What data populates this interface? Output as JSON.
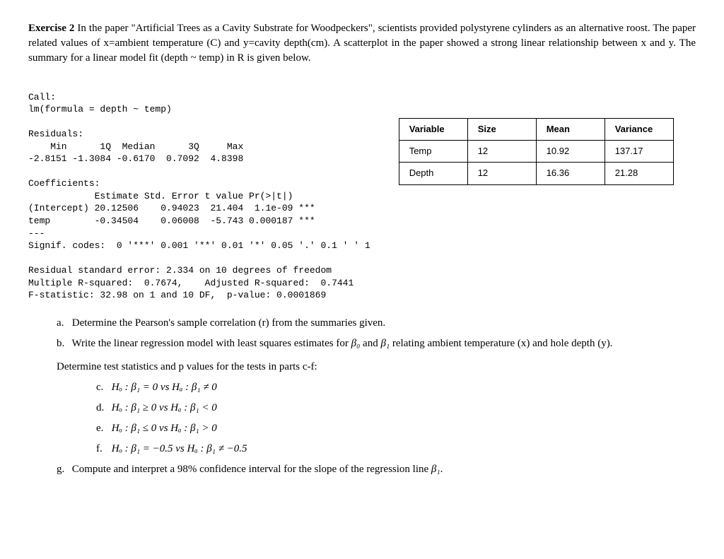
{
  "exercise": {
    "title_bold": "Exercise 2",
    "intro_text": " In the paper \"Artificial Trees as a Cavity Substrate for Woodpeckers\", scientists provided polystyrene cylinders as an alternative roost. The paper related values of x=ambient temperature (C) and y=cavity depth(cm). A scatterplot in the paper showed a strong linear relationship between x and y. The summary for a linear model fit (depth ~ temp) in R is given below."
  },
  "r_output": {
    "call_label": "Call:",
    "call_line": "lm(formula = depth ~ temp)",
    "residuals_label": "Residuals:",
    "residuals_header": "    Min      1Q  Median      3Q     Max",
    "residuals_values": "-2.8151 -1.3084 -0.6170  0.7092  4.8398",
    "coefficients_label": "Coefficients:",
    "coef_header": "            Estimate Std. Error t value Pr(>|t|)",
    "coef_intercept": "(Intercept) 20.12506    0.94023  21.404  1.1e-09 ***",
    "coef_temp": "temp        -0.34504    0.06008  -5.743 0.000187 ***",
    "dashes": "---",
    "signif_codes": "Signif. codes:  0 '***' 0.001 '**' 0.01 '*' 0.05 '.' 0.1 ' ' 1",
    "rse_line": "Residual standard error: 2.334 on 10 degrees of freedom",
    "r2_line": "Multiple R-squared:  0.7674,    Adjusted R-squared:  0.7441",
    "fstat_line": "F-statistic: 32.98 on 1 and 10 DF,  p-value: 0.0001869"
  },
  "stats_table": {
    "headers": {
      "c1": "Variable",
      "c2": "Size",
      "c3": "Mean",
      "c4": "Variance"
    },
    "row1": {
      "c1": "Temp",
      "c2": "12",
      "c3": "10.92",
      "c4": "137.17"
    },
    "row2": {
      "c1": "Depth",
      "c2": "12",
      "c3": "16.36",
      "c4": "21.28"
    }
  },
  "questions": {
    "a": "Determine the Pearson's sample correlation (r) from the summaries given.",
    "b_pre": "Write the linear regression model with least squares estimates for ",
    "b_beta0": "β₀",
    "b_and": " and ",
    "b_beta1": "β₁",
    "b_post": " relating ambient temperature (x) and hole depth (y).",
    "sub_intro": "Determine test statistics and p values for the tests in parts c-f:",
    "c": "Hₒ : β₁ = 0 vs Hₐ : β₁ ≠ 0",
    "d": "Hₒ : β₁ ≥ 0 vs Hₐ : β₁ < 0",
    "e": "Hₒ : β₁ ≤ 0 vs Hₐ : β₁ > 0",
    "f": "Hₒ : β₁ = −0.5 vs Hₐ : β₁ ≠ −0.5",
    "g_pre": "Compute and interpret a 98% confidence interval for the slope of the regression line ",
    "g_beta1": "β₁",
    "g_post": "."
  },
  "labels": {
    "a": "a.",
    "b": "b.",
    "c": "c.",
    "d": "d.",
    "e": "e.",
    "f": "f.",
    "g": "g."
  }
}
